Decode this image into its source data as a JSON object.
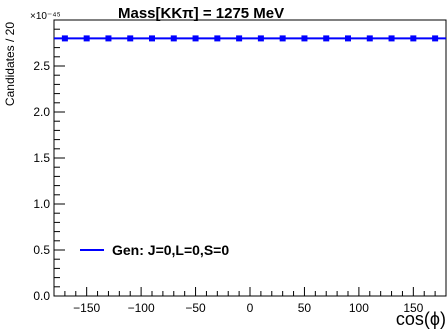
{
  "chart_data": {
    "type": "line",
    "title": "Mass[KKπ] = 1275 MeV",
    "xlabel": "cos(ϕ)",
    "ylabel": "Candidates / 20",
    "y_exponent_label": "×10⁻⁴⁵",
    "xlim": [
      -180,
      180
    ],
    "ylim": [
      0,
      3.0
    ],
    "x_ticks": [
      -150,
      -100,
      -50,
      0,
      50,
      100,
      150
    ],
    "x_tick_labels": [
      "−150",
      "−100",
      "−50",
      "0",
      "50",
      "100",
      "150"
    ],
    "y_ticks": [
      0.0,
      0.5,
      1.0,
      1.5,
      2.0,
      2.5
    ],
    "y_tick_labels": [
      "0.0",
      "0.5",
      "1.0",
      "1.5",
      "2.0",
      "2.5"
    ],
    "grid": false,
    "legend_placement": "bottom-left",
    "series": [
      {
        "name": "Gen: J=0,L=0,S=0",
        "color": "#0000ff",
        "marker": "square",
        "x": [
          -170,
          -150,
          -130,
          -110,
          -90,
          -70,
          -50,
          -30,
          -10,
          10,
          30,
          50,
          70,
          90,
          110,
          130,
          150,
          170
        ],
        "values": [
          2.8,
          2.8,
          2.8,
          2.8,
          2.8,
          2.8,
          2.8,
          2.8,
          2.8,
          2.8,
          2.8,
          2.8,
          2.8,
          2.8,
          2.8,
          2.8,
          2.8,
          2.8
        ]
      }
    ]
  }
}
